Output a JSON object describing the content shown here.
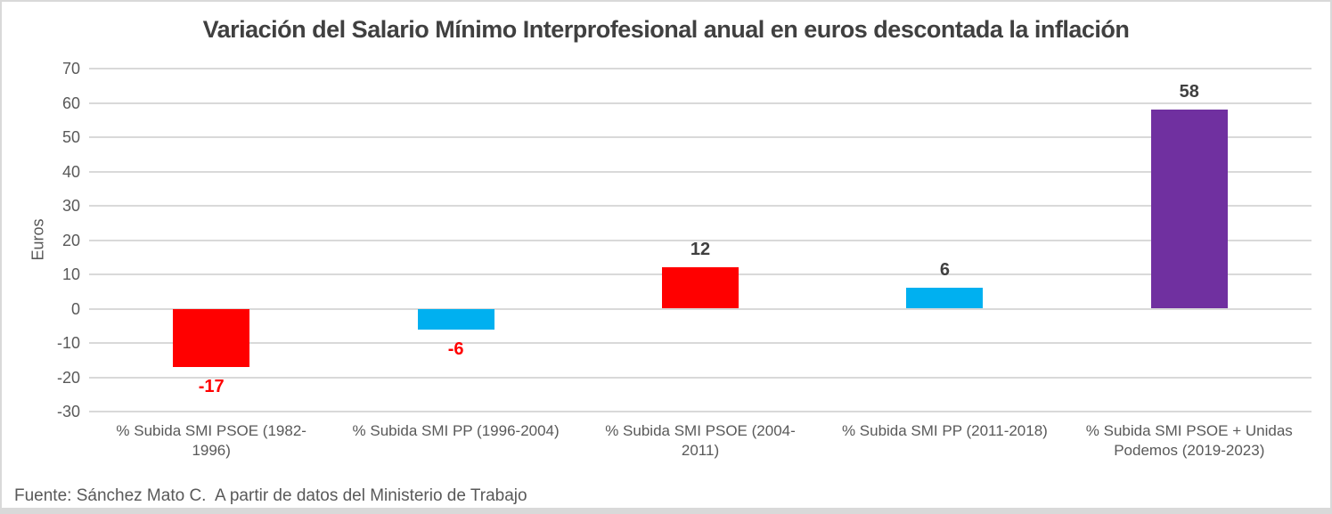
{
  "chart_data": {
    "type": "bar",
    "title": "Variación del Salario Mínimo Interprofesional anual en euros descontada la inflación",
    "xlabel": "",
    "ylabel": "Euros",
    "categories": [
      "% Subida SMI PSOE (1982-1996)",
      "% Subida SMI PP (1996-2004)",
      "% Subida SMI PSOE (2004-2011)",
      "% Subida SMI PP (2011-2018)",
      "% Subida SMI PSOE + Unidas Podemos (2019-2023)"
    ],
    "values": [
      -17,
      -6,
      12,
      6,
      58
    ],
    "data_labels": [
      "-17",
      "-6",
      "12",
      "6",
      "58"
    ],
    "bar_colors": [
      "#FF0000",
      "#00B0F0",
      "#FF0000",
      "#00B0F0",
      "#7030A0"
    ],
    "data_label_colors": [
      "#FF0000",
      "#FF0000",
      "#404040",
      "#404040",
      "#404040"
    ],
    "ylim": [
      -30,
      70
    ],
    "yticks": [
      70,
      60,
      50,
      40,
      30,
      20,
      10,
      0,
      -10,
      -20,
      -30
    ],
    "grid": true,
    "gridline_color": "#D9D9D9",
    "legend_position": "none"
  },
  "footer": {
    "source_text": "Fuente: Sánchez Mato C.  A partir de datos del Ministerio de Trabajo"
  }
}
